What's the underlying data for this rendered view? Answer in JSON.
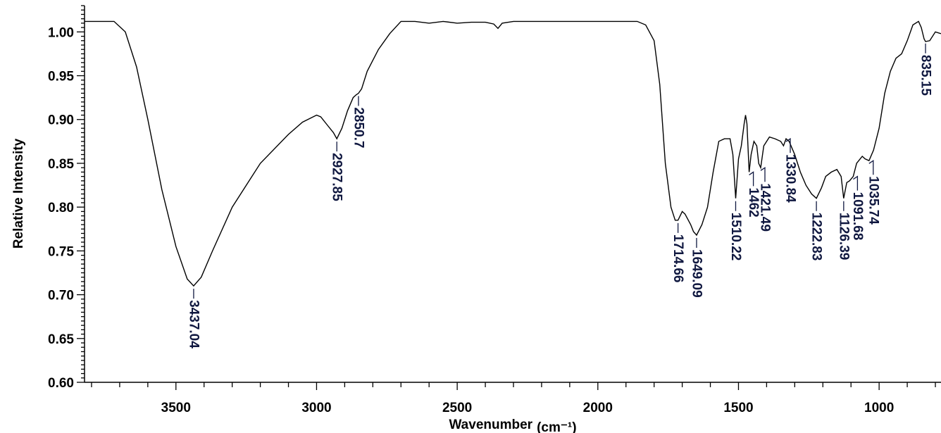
{
  "chart_data": {
    "type": "line",
    "xlabel": "Wavenumber",
    "xlabel_unit": "(cm⁻¹)",
    "ylabel": "Relative Intensity",
    "xlim": [
      3825,
      780
    ],
    "ylim": [
      0.6,
      1.03
    ],
    "x_reversed": true,
    "grid": false,
    "x_ticks": [
      "3500",
      "3000",
      "2500",
      "2000",
      "1500",
      "1000"
    ],
    "y_ticks": [
      "0.60",
      "0.65",
      "0.70",
      "0.75",
      "0.80",
      "0.85",
      "0.90",
      "0.95",
      "1.00"
    ],
    "series": [
      {
        "x": [
          3825,
          3720,
          3680,
          3640,
          3600,
          3550,
          3500,
          3460,
          3437,
          3410,
          3370,
          3300,
          3200,
          3100,
          3050,
          3000,
          2985,
          2960,
          2940,
          2928,
          2910,
          2890,
          2870,
          2860,
          2851,
          2840,
          2820,
          2780,
          2740,
          2700,
          2650,
          2600,
          2550,
          2500,
          2450,
          2400,
          2370,
          2355,
          2340,
          2300,
          2200,
          2100,
          2000,
          1900,
          1860,
          1830,
          1800,
          1780,
          1760,
          1740,
          1725,
          1715,
          1700,
          1690,
          1670,
          1660,
          1649,
          1630,
          1610,
          1590,
          1570,
          1550,
          1530,
          1520,
          1510,
          1500,
          1490,
          1480,
          1475,
          1470,
          1462,
          1455,
          1445,
          1435,
          1428,
          1421,
          1410,
          1390,
          1370,
          1350,
          1340,
          1331,
          1320,
          1300,
          1280,
          1260,
          1240,
          1223,
          1205,
          1190,
          1170,
          1150,
          1135,
          1126,
          1115,
          1105,
          1092,
          1080,
          1060,
          1050,
          1036,
          1020,
          1000,
          980,
          960,
          940,
          920,
          900,
          880,
          860,
          850,
          840,
          835,
          820,
          800,
          780
        ],
        "y": [
          1.012,
          1.012,
          1.0,
          0.96,
          0.9,
          0.82,
          0.755,
          0.718,
          0.71,
          0.72,
          0.75,
          0.8,
          0.85,
          0.883,
          0.897,
          0.905,
          0.903,
          0.893,
          0.885,
          0.878,
          0.89,
          0.91,
          0.925,
          0.928,
          0.93,
          0.935,
          0.955,
          0.98,
          0.998,
          1.012,
          1.012,
          1.01,
          1.012,
          1.01,
          1.011,
          1.011,
          1.009,
          1.004,
          1.01,
          1.012,
          1.012,
          1.012,
          1.012,
          1.012,
          1.012,
          1.008,
          0.99,
          0.94,
          0.85,
          0.8,
          0.785,
          0.785,
          0.795,
          0.792,
          0.78,
          0.772,
          0.768,
          0.78,
          0.8,
          0.84,
          0.875,
          0.878,
          0.878,
          0.86,
          0.81,
          0.855,
          0.87,
          0.895,
          0.905,
          0.895,
          0.84,
          0.86,
          0.875,
          0.87,
          0.85,
          0.845,
          0.87,
          0.88,
          0.878,
          0.875,
          0.87,
          0.878,
          0.875,
          0.86,
          0.84,
          0.825,
          0.815,
          0.81,
          0.822,
          0.835,
          0.84,
          0.843,
          0.835,
          0.81,
          0.828,
          0.83,
          0.835,
          0.85,
          0.858,
          0.855,
          0.853,
          0.865,
          0.89,
          0.93,
          0.955,
          0.97,
          0.975,
          0.99,
          1.008,
          1.012,
          1.005,
          0.992,
          0.989,
          0.99,
          1.0,
          0.998
        ]
      }
    ],
    "peak_labels": [
      {
        "label": "3437.04",
        "x": 3437,
        "y": 0.71,
        "leader": "straight"
      },
      {
        "label": "2927.85",
        "x": 2928,
        "y": 0.878,
        "leader": "straight"
      },
      {
        "label": "2850.7",
        "x": 2851,
        "y": 0.93,
        "leader": "straight"
      },
      {
        "label": "1714.66",
        "x": 1715,
        "y": 0.785,
        "leader": "straight"
      },
      {
        "label": "1649.09",
        "x": 1649,
        "y": 0.768,
        "leader": "straight"
      },
      {
        "label": "1510.22",
        "x": 1510,
        "y": 0.81,
        "leader": "straight"
      },
      {
        "label": "1462",
        "x": 1462,
        "y": 0.84,
        "leader": "hook"
      },
      {
        "label": "1421.49",
        "x": 1421,
        "y": 0.845,
        "leader": "hook"
      },
      {
        "label": "1330.84",
        "x": 1331,
        "y": 0.878,
        "leader": "hook"
      },
      {
        "label": "1222.83",
        "x": 1223,
        "y": 0.81,
        "leader": "straight"
      },
      {
        "label": "1126.39",
        "x": 1126,
        "y": 0.81,
        "leader": "straight"
      },
      {
        "label": "1091.68",
        "x": 1092,
        "y": 0.835,
        "leader": "hook"
      },
      {
        "label": "1035.74",
        "x": 1036,
        "y": 0.853,
        "leader": "hook"
      },
      {
        "label": "835.15",
        "x": 835,
        "y": 0.99,
        "leader": "straight"
      }
    ]
  }
}
